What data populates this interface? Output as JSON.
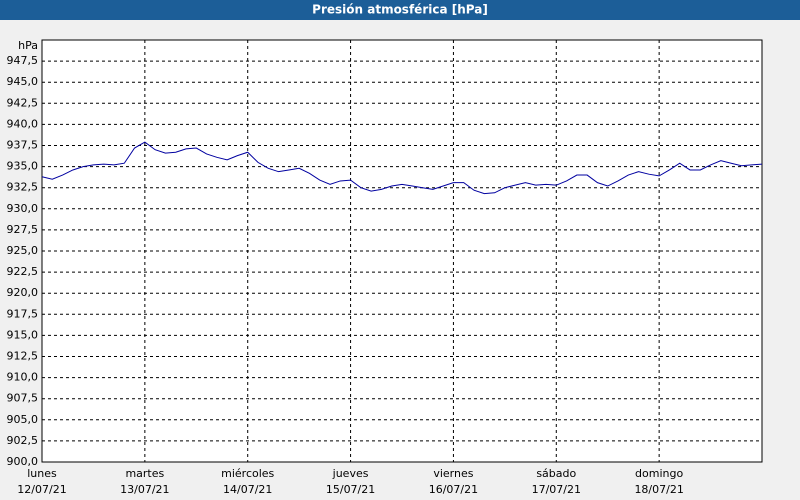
{
  "chart_data": {
    "type": "line",
    "title": "Presión atmosférica [hPa]",
    "y_unit": "hPa",
    "x": [
      0,
      0.1,
      0.2,
      0.3,
      0.4,
      0.5,
      0.6,
      0.7,
      0.8,
      0.9,
      1,
      1.1,
      1.2,
      1.3,
      1.4,
      1.5,
      1.6,
      1.7,
      1.8,
      1.9,
      2,
      2.1,
      2.2,
      2.3,
      2.4,
      2.5,
      2.6,
      2.7,
      2.8,
      2.9,
      3,
      3.1,
      3.2,
      3.3,
      3.4,
      3.5,
      3.6,
      3.7,
      3.8,
      3.9,
      4,
      4.1,
      4.2,
      4.3,
      4.4,
      4.5,
      4.6,
      4.7,
      4.8,
      4.9,
      5,
      5.1,
      5.2,
      5.3,
      5.4,
      5.5,
      5.6,
      5.7,
      5.8,
      5.9,
      6,
      6.1,
      6.2,
      6.3,
      6.4,
      6.5,
      6.6,
      6.7,
      6.8,
      6.9,
      7
    ],
    "series": [
      {
        "name": "Presión",
        "color": "#0000a0",
        "values": [
          933.8,
          933.5,
          934.0,
          934.6,
          935.0,
          935.2,
          935.3,
          935.2,
          935.4,
          937.2,
          937.9,
          937.0,
          936.6,
          936.7,
          937.1,
          937.2,
          936.5,
          936.1,
          935.8,
          936.3,
          936.7,
          935.5,
          934.8,
          934.4,
          934.6,
          934.8,
          934.2,
          933.4,
          932.9,
          933.3,
          933.4,
          932.5,
          932.1,
          932.3,
          932.7,
          932.9,
          932.7,
          932.5,
          932.3,
          932.7,
          933.1,
          933.1,
          932.2,
          931.8,
          931.9,
          932.5,
          932.8,
          933.1,
          932.8,
          932.9,
          932.8,
          933.3,
          934.0,
          934.0,
          933.1,
          932.7,
          933.3,
          934.0,
          934.4,
          934.1,
          933.9,
          934.6,
          935.4,
          934.6,
          934.6,
          935.2,
          935.7,
          935.4,
          935.1,
          935.2,
          935.3
        ]
      }
    ],
    "xlim": [
      0,
      7
    ],
    "xticks": [
      {
        "value": 0,
        "label": "lunes"
      },
      {
        "value": 1,
        "label": "martes"
      },
      {
        "value": 2,
        "label": "miércoles"
      },
      {
        "value": 3,
        "label": "jueves"
      },
      {
        "value": 4,
        "label": "viernes"
      },
      {
        "value": 5,
        "label": "sábado"
      },
      {
        "value": 6,
        "label": "domingo"
      }
    ],
    "xtick_dates": [
      "12/07/21",
      "13/07/21",
      "14/07/21",
      "15/07/21",
      "16/07/21",
      "17/07/21",
      "18/07/21"
    ],
    "ylim": [
      900,
      950
    ],
    "yticks": [
      {
        "value": 900,
        "label": "900,0"
      },
      {
        "value": 902.5,
        "label": "902,5"
      },
      {
        "value": 905,
        "label": "905,0"
      },
      {
        "value": 907.5,
        "label": "907,5"
      },
      {
        "value": 910,
        "label": "910,0"
      },
      {
        "value": 912.5,
        "label": "912,5"
      },
      {
        "value": 915,
        "label": "915,0"
      },
      {
        "value": 917.5,
        "label": "917,5"
      },
      {
        "value": 920,
        "label": "920,0"
      },
      {
        "value": 922.5,
        "label": "922,5"
      },
      {
        "value": 925,
        "label": "925,0"
      },
      {
        "value": 927.5,
        "label": "927,5"
      },
      {
        "value": 930,
        "label": "930,0"
      },
      {
        "value": 932.5,
        "label": "932,5"
      },
      {
        "value": 935,
        "label": "935,0"
      },
      {
        "value": 937.5,
        "label": "937,5"
      },
      {
        "value": 940,
        "label": "940,0"
      },
      {
        "value": 942.5,
        "label": "942,5"
      },
      {
        "value": 945,
        "label": "945,0"
      },
      {
        "value": 947.5,
        "label": "947,5"
      }
    ],
    "grid": true
  }
}
